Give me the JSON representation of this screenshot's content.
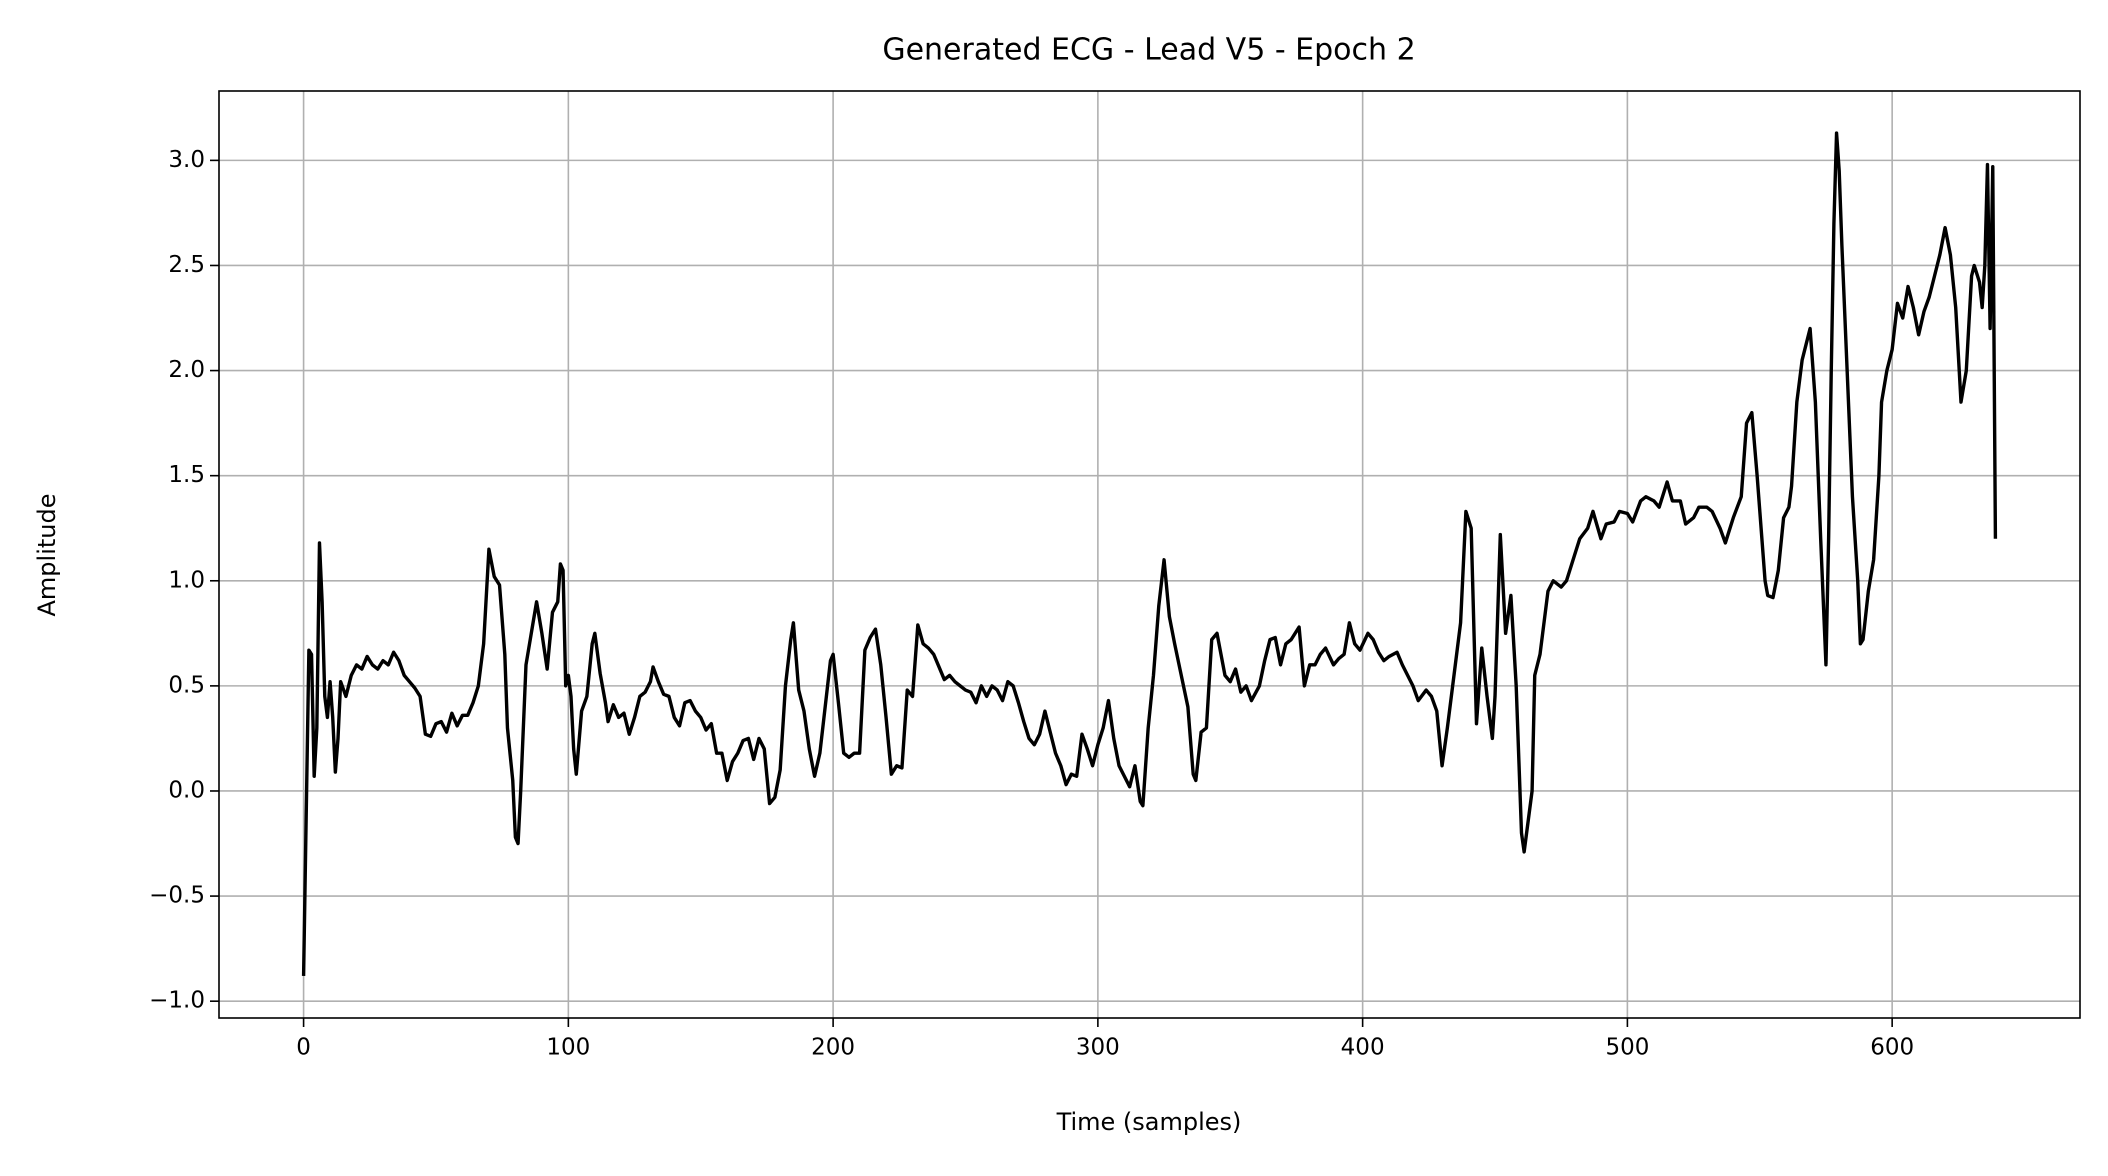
{
  "chart_data": {
    "type": "line",
    "title": "Generated ECG - Lead V5 - Epoch 2",
    "xlabel": "Time (samples)",
    "ylabel": "Amplitude",
    "color": "#000000",
    "grid": true,
    "xlim": [
      -31.95,
      670.95
    ],
    "ylim": [
      -1.08,
      3.33
    ],
    "xticks": [
      0,
      100,
      200,
      300,
      400,
      500,
      600
    ],
    "yticks": [
      {
        "value": -1.0,
        "label": "−1.0"
      },
      {
        "value": -0.5,
        "label": "−0.5"
      },
      {
        "value": 0.0,
        "label": "0.0"
      },
      {
        "value": 0.5,
        "label": "0.5"
      },
      {
        "value": 1.0,
        "label": "1.0"
      },
      {
        "value": 1.5,
        "label": "1.5"
      },
      {
        "value": 2.0,
        "label": "2.0"
      },
      {
        "value": 2.5,
        "label": "2.5"
      },
      {
        "value": 3.0,
        "label": "3.0"
      }
    ],
    "x": [
      0,
      2,
      3,
      4,
      5,
      6,
      7,
      8,
      9,
      10,
      11,
      12,
      13,
      14,
      16,
      18,
      20,
      22,
      24,
      26,
      28,
      30,
      32,
      34,
      36,
      38,
      40,
      42,
      44,
      46,
      48,
      50,
      52,
      54,
      56,
      58,
      60,
      62,
      64,
      66,
      68,
      70,
      72,
      74,
      76,
      77,
      79,
      80,
      81,
      82,
      84,
      86,
      88,
      90,
      92,
      94,
      96,
      97,
      98,
      99,
      100,
      101,
      102,
      103,
      105,
      107,
      109,
      110,
      112,
      114,
      115,
      117,
      119,
      121,
      123,
      125,
      127,
      129,
      131,
      132,
      134,
      136,
      138,
      140,
      142,
      144,
      146,
      148,
      150,
      152,
      154,
      156,
      158,
      160,
      162,
      164,
      166,
      168,
      170,
      172,
      174,
      176,
      178,
      180,
      182,
      184,
      185,
      187,
      189,
      191,
      193,
      195,
      197,
      199,
      200,
      202,
      204,
      206,
      208,
      210,
      212,
      214,
      216,
      218,
      220,
      222,
      224,
      226,
      228,
      230,
      232,
      234,
      236,
      238,
      240,
      242,
      244,
      246,
      248,
      250,
      252,
      254,
      256,
      258,
      260,
      262,
      264,
      266,
      268,
      270,
      272,
      274,
      276,
      278,
      280,
      282,
      284,
      286,
      288,
      290,
      292,
      294,
      296,
      298,
      300,
      302,
      304,
      306,
      308,
      310,
      312,
      314,
      316,
      317,
      319,
      321,
      323,
      325,
      327,
      329,
      331,
      334,
      336,
      337,
      339,
      341,
      343,
      345,
      348,
      350,
      352,
      354,
      356,
      358,
      361,
      363,
      365,
      367,
      369,
      371,
      373,
      376,
      378,
      380,
      382,
      384,
      386,
      389,
      391,
      393,
      395,
      397,
      399,
      402,
      404,
      406,
      408,
      410,
      413,
      415,
      417,
      419,
      421,
      424,
      426,
      428,
      430,
      432,
      435,
      437,
      439,
      441,
      443,
      445,
      447,
      449,
      450,
      452,
      454,
      456,
      458,
      460,
      461,
      464,
      465,
      467,
      470,
      472,
      475,
      477,
      480,
      482,
      485,
      487,
      490,
      492,
      495,
      497,
      500,
      502,
      505,
      507,
      510,
      512,
      515,
      517,
      520,
      522,
      525,
      527,
      530,
      532,
      535,
      537,
      540,
      543,
      545,
      547,
      549,
      552,
      553,
      555,
      557,
      559,
      561,
      562,
      564,
      566,
      569,
      571,
      573,
      575,
      576,
      577,
      578,
      579,
      580,
      581,
      583,
      585,
      587,
      588,
      589,
      591,
      593,
      595,
      596,
      598,
      600,
      602,
      604,
      606,
      608,
      610,
      612,
      614,
      616,
      618,
      620,
      622,
      624,
      626,
      628,
      630,
      631,
      633,
      634,
      635,
      636,
      637,
      638,
      639
    ],
    "values": [
      -0.88,
      0.67,
      0.65,
      0.07,
      0.3,
      1.18,
      0.9,
      0.45,
      0.35,
      0.52,
      0.35,
      0.09,
      0.25,
      0.52,
      0.45,
      0.55,
      0.6,
      0.58,
      0.64,
      0.6,
      0.58,
      0.62,
      0.6,
      0.66,
      0.62,
      0.55,
      0.52,
      0.49,
      0.45,
      0.27,
      0.26,
      0.32,
      0.33,
      0.28,
      0.37,
      0.31,
      0.36,
      0.36,
      0.42,
      0.5,
      0.7,
      1.15,
      1.02,
      0.98,
      0.65,
      0.3,
      0.05,
      -0.22,
      -0.25,
      0.0,
      0.6,
      0.75,
      0.9,
      0.75,
      0.58,
      0.85,
      0.9,
      1.08,
      1.05,
      0.5,
      0.55,
      0.45,
      0.2,
      0.08,
      0.38,
      0.45,
      0.7,
      0.75,
      0.56,
      0.42,
      0.33,
      0.41,
      0.35,
      0.37,
      0.27,
      0.35,
      0.45,
      0.47,
      0.52,
      0.59,
      0.52,
      0.46,
      0.45,
      0.35,
      0.31,
      0.42,
      0.43,
      0.38,
      0.35,
      0.29,
      0.32,
      0.18,
      0.18,
      0.05,
      0.14,
      0.18,
      0.24,
      0.25,
      0.15,
      0.25,
      0.2,
      -0.06,
      -0.03,
      0.1,
      0.5,
      0.72,
      0.8,
      0.48,
      0.38,
      0.2,
      0.07,
      0.18,
      0.4,
      0.62,
      0.65,
      0.42,
      0.18,
      0.16,
      0.18,
      0.18,
      0.67,
      0.73,
      0.77,
      0.6,
      0.35,
      0.08,
      0.12,
      0.11,
      0.48,
      0.45,
      0.79,
      0.7,
      0.68,
      0.65,
      0.59,
      0.53,
      0.55,
      0.52,
      0.5,
      0.48,
      0.47,
      0.42,
      0.5,
      0.45,
      0.5,
      0.48,
      0.43,
      0.52,
      0.5,
      0.42,
      0.33,
      0.25,
      0.22,
      0.27,
      0.38,
      0.28,
      0.18,
      0.12,
      0.03,
      0.08,
      0.07,
      0.27,
      0.2,
      0.12,
      0.22,
      0.3,
      0.43,
      0.25,
      0.12,
      0.07,
      0.02,
      0.12,
      -0.05,
      -0.07,
      0.3,
      0.55,
      0.88,
      1.1,
      0.83,
      0.7,
      0.58,
      0.4,
      0.08,
      0.05,
      0.28,
      0.3,
      0.72,
      0.75,
      0.55,
      0.52,
      0.58,
      0.47,
      0.5,
      0.43,
      0.5,
      0.62,
      0.72,
      0.73,
      0.6,
      0.7,
      0.72,
      0.78,
      0.5,
      0.6,
      0.6,
      0.65,
      0.68,
      0.6,
      0.63,
      0.65,
      0.8,
      0.7,
      0.67,
      0.75,
      0.72,
      0.66,
      0.62,
      0.64,
      0.66,
      0.6,
      0.55,
      0.5,
      0.43,
      0.48,
      0.45,
      0.38,
      0.12,
      0.3,
      0.6,
      0.8,
      1.33,
      1.25,
      0.32,
      0.68,
      0.45,
      0.25,
      0.45,
      1.22,
      0.75,
      0.93,
      0.5,
      -0.2,
      -0.29,
      0.0,
      0.55,
      0.65,
      0.95,
      1.0,
      0.97,
      1.0,
      1.12,
      1.2,
      1.25,
      1.33,
      1.2,
      1.27,
      1.28,
      1.33,
      1.32,
      1.28,
      1.38,
      1.4,
      1.38,
      1.35,
      1.47,
      1.38,
      1.38,
      1.27,
      1.3,
      1.35,
      1.35,
      1.33,
      1.25,
      1.18,
      1.3,
      1.4,
      1.75,
      1.8,
      1.5,
      1.0,
      0.93,
      0.92,
      1.05,
      1.3,
      1.35,
      1.45,
      1.85,
      2.05,
      2.2,
      1.85,
      1.2,
      0.6,
      1.2,
      2.0,
      2.7,
      3.13,
      2.95,
      2.6,
      2.0,
      1.4,
      1.0,
      0.7,
      0.72,
      0.95,
      1.1,
      1.5,
      1.85,
      2.0,
      2.1,
      2.32,
      2.25,
      2.4,
      2.3,
      2.17,
      2.28,
      2.35,
      2.45,
      2.55,
      2.68,
      2.55,
      2.3,
      1.85,
      2.0,
      2.45,
      2.5,
      2.42,
      2.3,
      2.5,
      2.98,
      2.2,
      2.97,
      1.2
    ]
  }
}
